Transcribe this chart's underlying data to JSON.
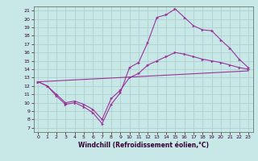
{
  "title": "",
  "xlabel": "Windchill (Refroidissement éolien,°C)",
  "bg_color": "#c8e8e8",
  "grid_color": "#b0d0d0",
  "line_color": "#993399",
  "xlim_min": -0.5,
  "xlim_max": 23.5,
  "ylim_min": 6.5,
  "ylim_max": 21.5,
  "yticks": [
    7,
    8,
    9,
    10,
    11,
    12,
    13,
    14,
    15,
    16,
    17,
    18,
    19,
    20,
    21
  ],
  "xticks": [
    0,
    1,
    2,
    3,
    4,
    5,
    6,
    7,
    8,
    9,
    10,
    11,
    12,
    13,
    14,
    15,
    16,
    17,
    18,
    19,
    20,
    21,
    22,
    23
  ],
  "line1_x": [
    0,
    1,
    2,
    3,
    4,
    5,
    6,
    7,
    8,
    9,
    10,
    11,
    12,
    13,
    14,
    15,
    16,
    17,
    18,
    19,
    20,
    21,
    22,
    23
  ],
  "line1_y": [
    12.5,
    12.0,
    10.8,
    9.8,
    10.0,
    9.5,
    8.8,
    7.5,
    9.8,
    11.2,
    14.2,
    14.8,
    17.2,
    20.2,
    20.5,
    21.2,
    20.2,
    19.2,
    18.7,
    18.6,
    17.5,
    16.5,
    15.2,
    14.2
  ],
  "line2_x": [
    0,
    1,
    2,
    3,
    4,
    5,
    6,
    7,
    8,
    9,
    10,
    11,
    12,
    13,
    14,
    15,
    16,
    17,
    18,
    19,
    20,
    21,
    22,
    23
  ],
  "line2_y": [
    12.5,
    12.0,
    11.0,
    10.0,
    10.2,
    9.8,
    9.2,
    8.0,
    10.5,
    11.5,
    13.0,
    13.5,
    14.5,
    15.0,
    15.5,
    16.0,
    15.8,
    15.5,
    15.2,
    15.0,
    14.8,
    14.5,
    14.2,
    14.0
  ],
  "line3_x": [
    0,
    23
  ],
  "line3_y": [
    12.5,
    13.8
  ]
}
